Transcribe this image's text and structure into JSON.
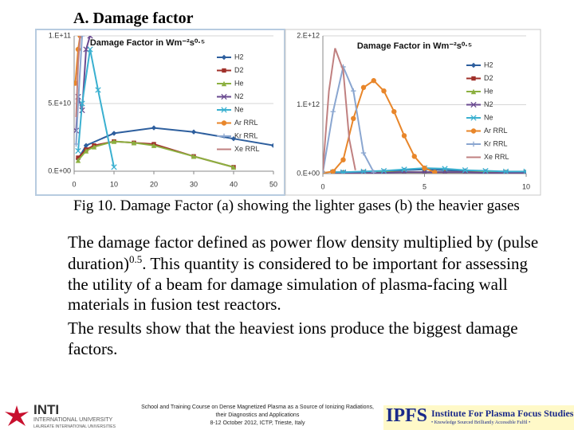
{
  "header": {
    "title": "A.  Damage factor"
  },
  "caption": "Fig 10. Damage Factor (a) showing the lighter gases (b) the heavier gases",
  "body": [
    [
      "The damage factor defined as power flow density multiplied by (pulse duration)",
      "0.5",
      ". This quantity is considered to be important for assessing the utility of a beam for damage simulation of plasma-facing  wall materials in fusion test reactors."
    ],
    [
      "The results show that the heaviest ions produce the biggest damage factors."
    ]
  ],
  "footer": {
    "inti": [
      "INTI",
      "INTERNATIONAL UNIVERSITY",
      "LAUREATE INTERNATIONAL UNIVERSITIES"
    ],
    "course": [
      "School and Training Course on Dense Magnetized Plasma as a Source of Ionizing Radiations,",
      "their Diagnostics and Applications",
      "8-12 October 2012, ICTP, Trieste, Italy"
    ],
    "ipfs": [
      "IPFS",
      "Institute For Plasma Focus Studies",
      "• Knowledge Sourced Brilliantly Accessible Fulfil •"
    ]
  },
  "chart_data": [
    {
      "type": "line",
      "title": "Damage Factor in Wm⁻²s⁰·⁵",
      "grid": true,
      "legend": "right",
      "xlim": [
        0,
        50
      ],
      "xticks": [
        0,
        10,
        20,
        30,
        40,
        50
      ],
      "ylim": [
        0,
        100000000000.0
      ],
      "yticks": [
        {
          "value": 0,
          "label": "0.E+00"
        },
        {
          "value": 50000000000.0,
          "label": "5.E+10"
        },
        {
          "value": 100000000000.0,
          "label": "1.E+11"
        }
      ],
      "series": [
        {
          "name": "H2",
          "color": "#2e5f9e",
          "marker": "diamond",
          "x": [
            1,
            3,
            10,
            20,
            30,
            40,
            50
          ],
          "values": [
            9000000000.0,
            19000000000.0,
            28000000000.0,
            32000000000.0,
            29000000000.0,
            24000000000.0,
            19000000000.0
          ]
        },
        {
          "name": "D2",
          "color": "#a0302a",
          "marker": "square",
          "x": [
            1,
            3,
            5,
            10,
            15,
            20,
            30,
            40
          ],
          "values": [
            10000000000.0,
            16000000000.0,
            19000000000.0,
            22000000000.0,
            21000000000.0,
            20000000000.0,
            11000000000.0,
            3000000000.0
          ]
        },
        {
          "name": "He",
          "color": "#8cb040",
          "marker": "triangle",
          "x": [
            1,
            3,
            5,
            10,
            15,
            20,
            30,
            40
          ],
          "values": [
            8000000000.0,
            15000000000.0,
            18000000000.0,
            22000000000.0,
            21000000000.0,
            19000000000.0,
            11000000000.0,
            3000000000.0
          ]
        },
        {
          "name": "N2",
          "color": "#6a4a90",
          "marker": "cross",
          "x": [
            0.5,
            1,
            2,
            3,
            4
          ],
          "values": [
            30000000000.0,
            55000000000.0,
            45000000000.0,
            90000000000.0,
            100000000000.0
          ]
        },
        {
          "name": "Ne",
          "color": "#3ab0d0",
          "marker": "cross",
          "x": [
            1,
            2,
            4,
            6,
            10
          ],
          "values": [
            15000000000.0,
            50000000000.0,
            90000000000.0,
            60000000000.0,
            3000000000.0
          ]
        },
        {
          "name": "Ar RRL",
          "color": "#e8862a",
          "marker": "circle",
          "x": [
            0.3,
            1,
            1.5
          ],
          "values": [
            65000000000.0,
            90000000000.0,
            100000000000.0
          ]
        },
        {
          "name": "Kr RRL",
          "color": "#8aa6d0",
          "marker": "plus",
          "x": [
            0.5,
            1,
            2
          ],
          "values": [
            20000000000.0,
            50000000000.0,
            100000000000.0
          ]
        },
        {
          "name": "Xe RRL",
          "color": "#c08080",
          "marker": "none",
          "x": [
            0.5,
            1,
            1.5
          ],
          "values": [
            40000000000.0,
            80000000000.0,
            100000000000.0
          ]
        }
      ]
    },
    {
      "type": "line",
      "title": "Damage Factor in Wm⁻²s⁰·⁵",
      "grid": true,
      "legend": "right",
      "xlim": [
        0,
        10
      ],
      "xticks": [
        0,
        5,
        10
      ],
      "ylim": [
        0,
        2000000000000.0
      ],
      "yticks": [
        {
          "value": 0,
          "label": "0.E+00"
        },
        {
          "value": 1000000000000.0,
          "label": "1.E+12"
        },
        {
          "value": 2000000000000.0,
          "label": "2.E+12"
        }
      ],
      "series": [
        {
          "name": "H2",
          "color": "#2e5f9e",
          "marker": "diamond",
          "x": [
            0.5,
            1,
            2,
            3,
            4,
            5,
            6,
            7,
            8,
            9,
            10
          ],
          "values": [
            20000000000.0,
            20000000000.0,
            20000000000.0,
            30000000000.0,
            50000000000.0,
            60000000000.0,
            50000000000.0,
            40000000000.0,
            30000000000.0,
            20000000000.0,
            20000000000.0
          ]
        },
        {
          "name": "D2",
          "color": "#a0302a",
          "marker": "square",
          "x": [
            0.5,
            1,
            2,
            3,
            4,
            5,
            6,
            7,
            8,
            9,
            10
          ],
          "values": [
            10000000000.0,
            10000000000.0,
            20000000000.0,
            20000000000.0,
            20000000000.0,
            20000000000.0,
            20000000000.0,
            20000000000.0,
            20000000000.0,
            20000000000.0,
            20000000000.0
          ]
        },
        {
          "name": "He",
          "color": "#8cb040",
          "marker": "triangle",
          "x": [
            0.5,
            1,
            2,
            3,
            4,
            5,
            6,
            7,
            8,
            9,
            10
          ],
          "values": [
            10000000000.0,
            10000000000.0,
            10000000000.0,
            20000000000.0,
            20000000000.0,
            20000000000.0,
            20000000000.0,
            20000000000.0,
            20000000000.0,
            20000000000.0,
            20000000000.0
          ]
        },
        {
          "name": "N2",
          "color": "#6a4a90",
          "marker": "cross",
          "x": [
            0.5,
            1,
            2,
            3,
            4,
            5,
            6,
            7,
            8,
            9,
            10
          ],
          "values": [
            10000000000.0,
            10000000000.0,
            10000000000.0,
            10000000000.0,
            20000000000.0,
            20000000000.0,
            20000000000.0,
            20000000000.0,
            10000000000.0,
            10000000000.0,
            10000000000.0
          ]
        },
        {
          "name": "Ne",
          "color": "#3ab0d0",
          "marker": "cross",
          "x": [
            0.5,
            1,
            2,
            3,
            4,
            5,
            6,
            7,
            8,
            9,
            10
          ],
          "values": [
            20000000000.0,
            20000000000.0,
            30000000000.0,
            40000000000.0,
            60000000000.0,
            80000000000.0,
            70000000000.0,
            50000000000.0,
            40000000000.0,
            30000000000.0,
            30000000000.0
          ]
        },
        {
          "name": "Ar RRL",
          "color": "#e8862a",
          "marker": "circle",
          "x": [
            0,
            0.5,
            1,
            1.5,
            2,
            2.5,
            3,
            3.5,
            4,
            4.5,
            5,
            5.5
          ],
          "values": [
            10000000000.0,
            30000000000.0,
            200000000000.0,
            800000000000.0,
            1250000000000.0,
            1350000000000.0,
            1200000000000.0,
            900000000000.0,
            550000000000.0,
            250000000000.0,
            80000000000.0,
            20000000000.0
          ]
        },
        {
          "name": "Kr RRL",
          "color": "#8aa6d0",
          "marker": "plus",
          "x": [
            0,
            0.5,
            1,
            1.5,
            2,
            2.5
          ],
          "values": [
            20000000000.0,
            900000000000.0,
            1550000000000.0,
            1200000000000.0,
            300000000000.0,
            20000000000.0
          ]
        },
        {
          "name": "Xe RRL",
          "color": "#c08080",
          "marker": "none",
          "x": [
            0,
            0.3,
            0.6,
            1,
            1.3,
            1.6
          ],
          "values": [
            50000000000.0,
            1200000000000.0,
            1820000000000.0,
            1500000000000.0,
            500000000000.0,
            50000000000.0
          ]
        }
      ]
    }
  ]
}
